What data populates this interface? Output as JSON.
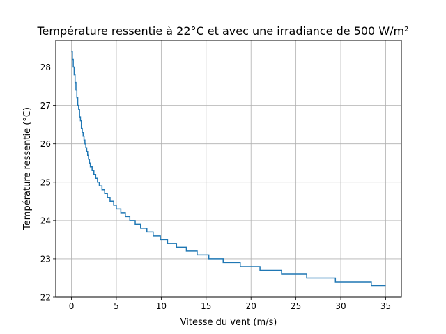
{
  "chart_data": {
    "type": "line",
    "title": "Température ressentie à 22°C et avec une irradiance de 500 W/m²",
    "xlabel": "Vitesse du vent (m/s)",
    "ylabel": "Température ressentie (°C)",
    "xlim": [
      -1.75,
      36.75
    ],
    "ylim": [
      22.0,
      28.7
    ],
    "xticks": [
      0,
      5,
      10,
      15,
      20,
      25,
      30,
      35
    ],
    "xtick_labels": [
      "0",
      "5",
      "10",
      "15",
      "20",
      "25",
      "30",
      "35"
    ],
    "yticks": [
      22,
      23,
      24,
      25,
      26,
      27,
      28
    ],
    "ytick_labels": [
      "22",
      "23",
      "24",
      "25",
      "26",
      "27",
      "28"
    ],
    "grid": true,
    "legend": false,
    "series": [
      {
        "color": "#1f77b4",
        "step": true,
        "x": [
          0,
          0.1,
          0.2,
          0.3,
          0.4,
          0.5,
          0.6,
          0.7,
          0.8,
          0.9,
          1.0,
          1.1,
          1.2,
          1.3,
          1.4,
          1.5,
          1.6,
          1.7,
          1.8,
          1.9,
          2.0,
          2.1,
          2.3,
          2.5,
          2.7,
          2.9,
          3.1,
          3.4,
          3.7,
          4.0,
          4.3,
          4.7,
          5.0,
          5.5,
          6.0,
          6.5,
          7.1,
          7.7,
          8.4,
          9.1,
          9.9,
          10.7,
          11.7,
          12.8,
          14.0,
          15.3,
          16.9,
          18.8,
          21.0,
          23.4,
          26.2,
          29.4,
          33.4,
          35.0
        ],
        "y": [
          28.4,
          28.2,
          28.0,
          27.8,
          27.6,
          27.4,
          27.2,
          27.0,
          26.9,
          26.7,
          26.6,
          26.4,
          26.3,
          26.2,
          26.1,
          26.0,
          25.9,
          25.8,
          25.7,
          25.6,
          25.5,
          25.4,
          25.3,
          25.2,
          25.1,
          25.0,
          24.9,
          24.8,
          24.7,
          24.6,
          24.5,
          24.4,
          24.3,
          24.2,
          24.1,
          24.0,
          23.9,
          23.8,
          23.7,
          23.6,
          23.5,
          23.4,
          23.3,
          23.2,
          23.1,
          23.0,
          22.9,
          22.8,
          22.7,
          22.6,
          22.5,
          22.4,
          22.3,
          22.3
        ]
      }
    ]
  }
}
